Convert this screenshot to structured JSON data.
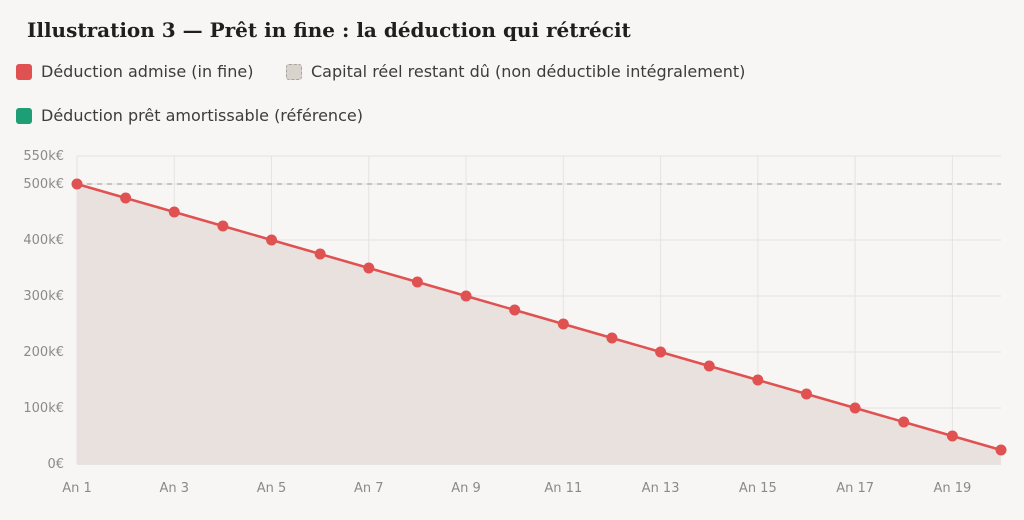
{
  "title": "Illustration 3 — Prêt in fine : la déduction qui rétrécit",
  "legend": [
    {
      "label": "Déduction admise (in fine)",
      "color": "#e05252"
    },
    {
      "label": "Capital réel restant dû (non déductible intégralement)",
      "color": "#d9d3cd"
    },
    {
      "label": "Déduction prêt amortissable (référence)",
      "color": "#1d9e75"
    }
  ],
  "chart_data": {
    "type": "line",
    "categories": [
      "An 1",
      "An 2",
      "An 3",
      "An 4",
      "An 5",
      "An 6",
      "An 7",
      "An 8",
      "An 9",
      "An 10",
      "An 11",
      "An 12",
      "An 13",
      "An 14",
      "An 15",
      "An 16",
      "An 17",
      "An 18",
      "An 19",
      "An 20"
    ],
    "x_tick_labels": [
      "An 1",
      "An 3",
      "An 5",
      "An 7",
      "An 9",
      "An 11",
      "An 13",
      "An 15",
      "An 17",
      "An 19"
    ],
    "y_tick_labels": [
      "0€",
      "100k€",
      "200k€",
      "300k€",
      "400k€",
      "500k€",
      "550k€"
    ],
    "y_ticks": [
      0,
      100000,
      200000,
      300000,
      400000,
      500000,
      550000
    ],
    "ylim": [
      0,
      550000
    ],
    "series": [
      {
        "name": "Déduction admise (in fine)",
        "values": [
          500000,
          475000,
          450000,
          425000,
          400000,
          375000,
          350000,
          325000,
          300000,
          275000,
          250000,
          225000,
          200000,
          175000,
          150000,
          125000,
          100000,
          75000,
          50000,
          25000
        ],
        "color": "#e05252",
        "fill": "#e9e1de"
      },
      {
        "name": "Capital réel restant dû (non déductible intégralement)",
        "values": [
          500000,
          500000,
          500000,
          500000,
          500000,
          500000,
          500000,
          500000,
          500000,
          500000,
          500000,
          500000,
          500000,
          500000,
          500000,
          500000,
          500000,
          500000,
          500000,
          500000
        ],
        "color": "#b9b4ae",
        "style": "dashed"
      }
    ],
    "grid": true
  }
}
